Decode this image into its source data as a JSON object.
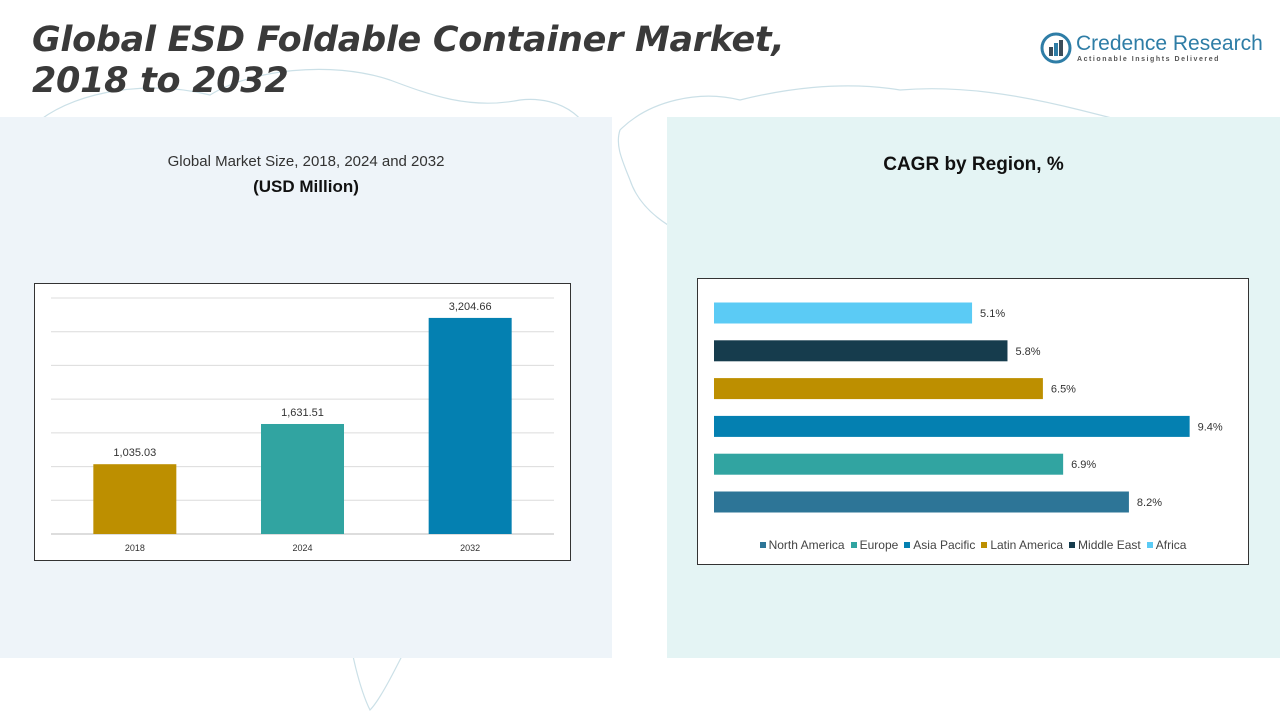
{
  "header": {
    "title_line1": "Global ESD Foldable Container Market,",
    "title_line2": "2018 to 2032"
  },
  "logo": {
    "name": "Credence Research",
    "tagline": "Actionable Insights Delivered"
  },
  "left_panel": {
    "subtitle": "Global Market Size, 2018, 2024 and 2032",
    "unit": "(USD Million)"
  },
  "right_panel": {
    "title": "CAGR by Region, %"
  },
  "chart_data": [
    {
      "type": "bar",
      "orientation": "vertical",
      "title": "Global Market Size, 2018, 2024 and 2032",
      "ylabel": "(USD Million)",
      "categories": [
        "2018",
        "2024",
        "2032"
      ],
      "values": [
        1035.03,
        1631.51,
        3204.66
      ],
      "value_labels": [
        "1,035.03",
        "1,631.51",
        "3,204.66"
      ],
      "colors": [
        "#bd8f00",
        "#31a4a1",
        "#0480b1"
      ],
      "ylim": [
        0,
        3500
      ],
      "grid": true,
      "legend": "none"
    },
    {
      "type": "bar",
      "orientation": "horizontal",
      "title": "CAGR by Region, %",
      "categories": [
        "North America",
        "Europe",
        "Asia Pacific",
        "Latin America",
        "Middle East",
        "Africa"
      ],
      "values": [
        8.2,
        6.9,
        9.4,
        6.5,
        5.8,
        5.1
      ],
      "value_labels": [
        "8.2%",
        "6.9%",
        "9.4%",
        "6.5%",
        "5.8%",
        "5.1%"
      ],
      "colors": [
        "#2d7597",
        "#31a4a1",
        "#0480b1",
        "#bd8f00",
        "#163c4d",
        "#5bcbf5"
      ],
      "xlim": [
        0,
        10
      ],
      "grid": false,
      "legend": "bottom"
    }
  ]
}
